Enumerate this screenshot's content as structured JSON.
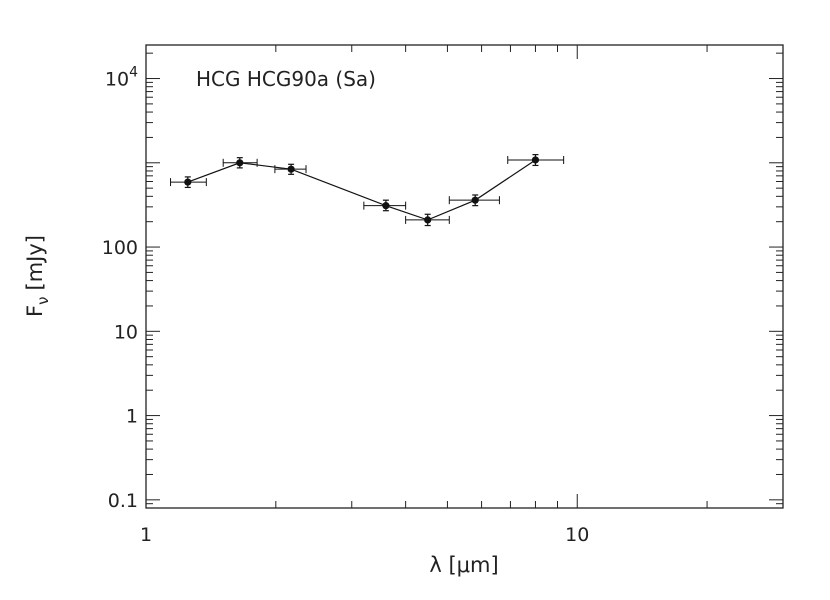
{
  "chart_data": {
    "type": "line",
    "annotation": "HCG HCG90a (Sa)",
    "xlabel": "λ [μm]",
    "ylabel_main": "F",
    "ylabel_sub": "ν",
    "ylabel_unit": "[mJy]",
    "xscale": "log",
    "yscale": "log",
    "xlim": [
      1,
      30
    ],
    "ylim": [
      0.08,
      25000
    ],
    "x_ticks": [
      {
        "value": 1,
        "label": "1"
      },
      {
        "value": 10,
        "label": "10"
      }
    ],
    "y_ticks": [
      {
        "value": 0.1,
        "label": "0.1"
      },
      {
        "value": 1,
        "label": "1"
      },
      {
        "value": 10,
        "label": "10"
      },
      {
        "value": 100,
        "label": "100"
      },
      {
        "value": 10000,
        "label": "10",
        "exp": "4"
      }
    ],
    "series": [
      {
        "name": "HCG90a",
        "points": [
          {
            "x": 1.25,
            "y": 590,
            "xerr": [
              1.14,
              1.38
            ],
            "yerr": [
              510,
              680
            ]
          },
          {
            "x": 1.65,
            "y": 1000,
            "xerr": [
              1.51,
              1.81
            ],
            "yerr": [
              870,
              1150
            ]
          },
          {
            "x": 2.17,
            "y": 840,
            "xerr": [
              1.99,
              2.35
            ],
            "yerr": [
              730,
              960
            ]
          },
          {
            "x": 3.6,
            "y": 310,
            "xerr": [
              3.2,
              4.0
            ],
            "yerr": [
              270,
              360
            ]
          },
          {
            "x": 4.5,
            "y": 210,
            "xerr": [
              4.0,
              5.05
            ],
            "yerr": [
              180,
              245
            ]
          },
          {
            "x": 5.8,
            "y": 360,
            "xerr": [
              5.05,
              6.6
            ],
            "yerr": [
              310,
              415
            ]
          },
          {
            "x": 8.0,
            "y": 1080,
            "xerr": [
              6.9,
              9.3
            ],
            "yerr": [
              930,
              1250
            ]
          }
        ]
      }
    ]
  }
}
